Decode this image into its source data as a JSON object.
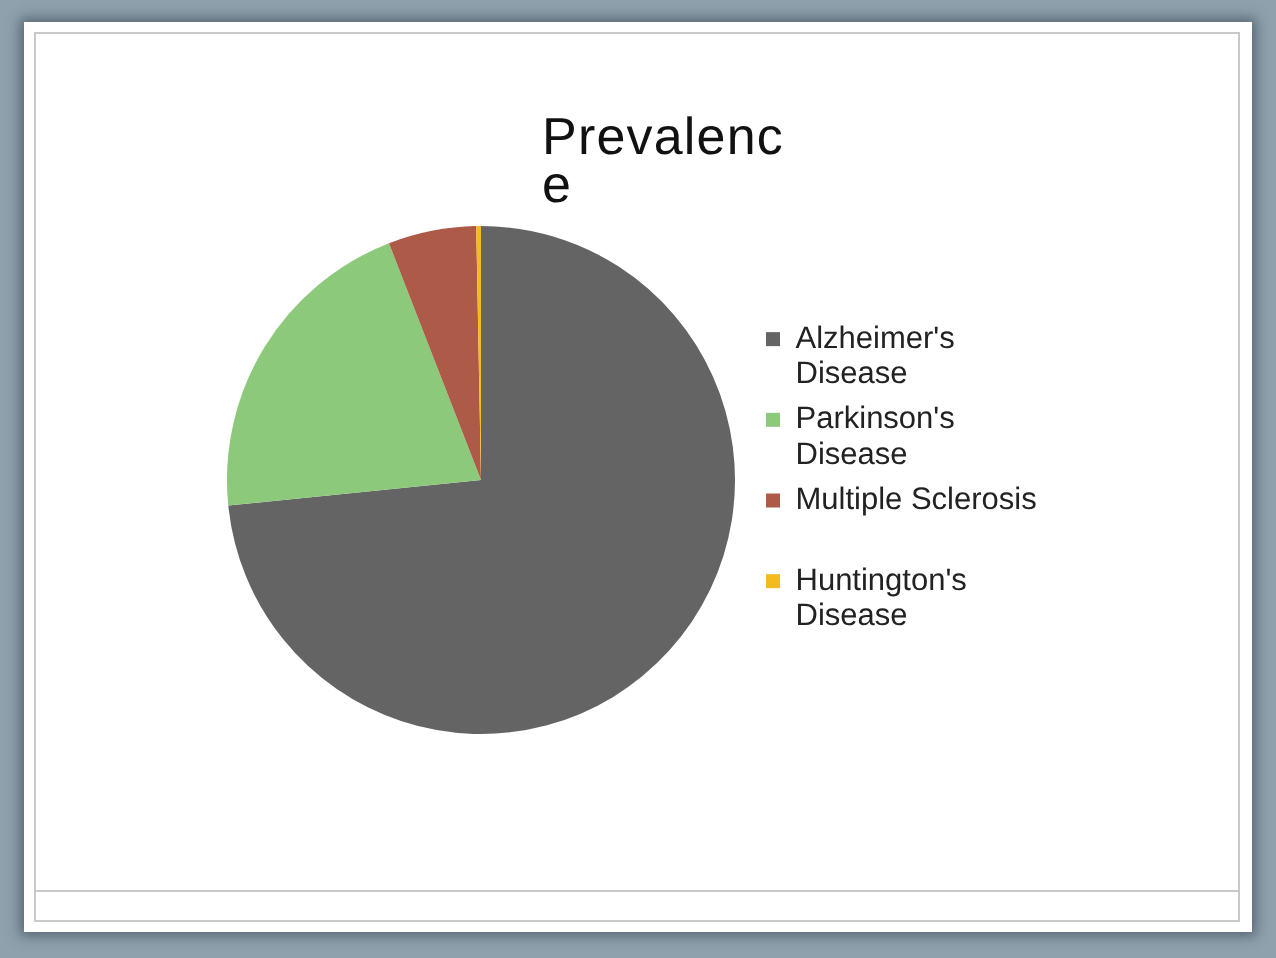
{
  "chart_data": {
    "type": "pie",
    "title": "Prevalence",
    "categories": [
      "Alzheimer's Disease",
      "Parkinson's Disease",
      "Multiple Sclerosis",
      "Huntington's Disease"
    ],
    "values": [
      73.4,
      20.7,
      5.6,
      0.3
    ],
    "colors": [
      "#646464",
      "#8dc97b",
      "#ad5a49",
      "#f4bb1e"
    ],
    "legend": "right"
  }
}
